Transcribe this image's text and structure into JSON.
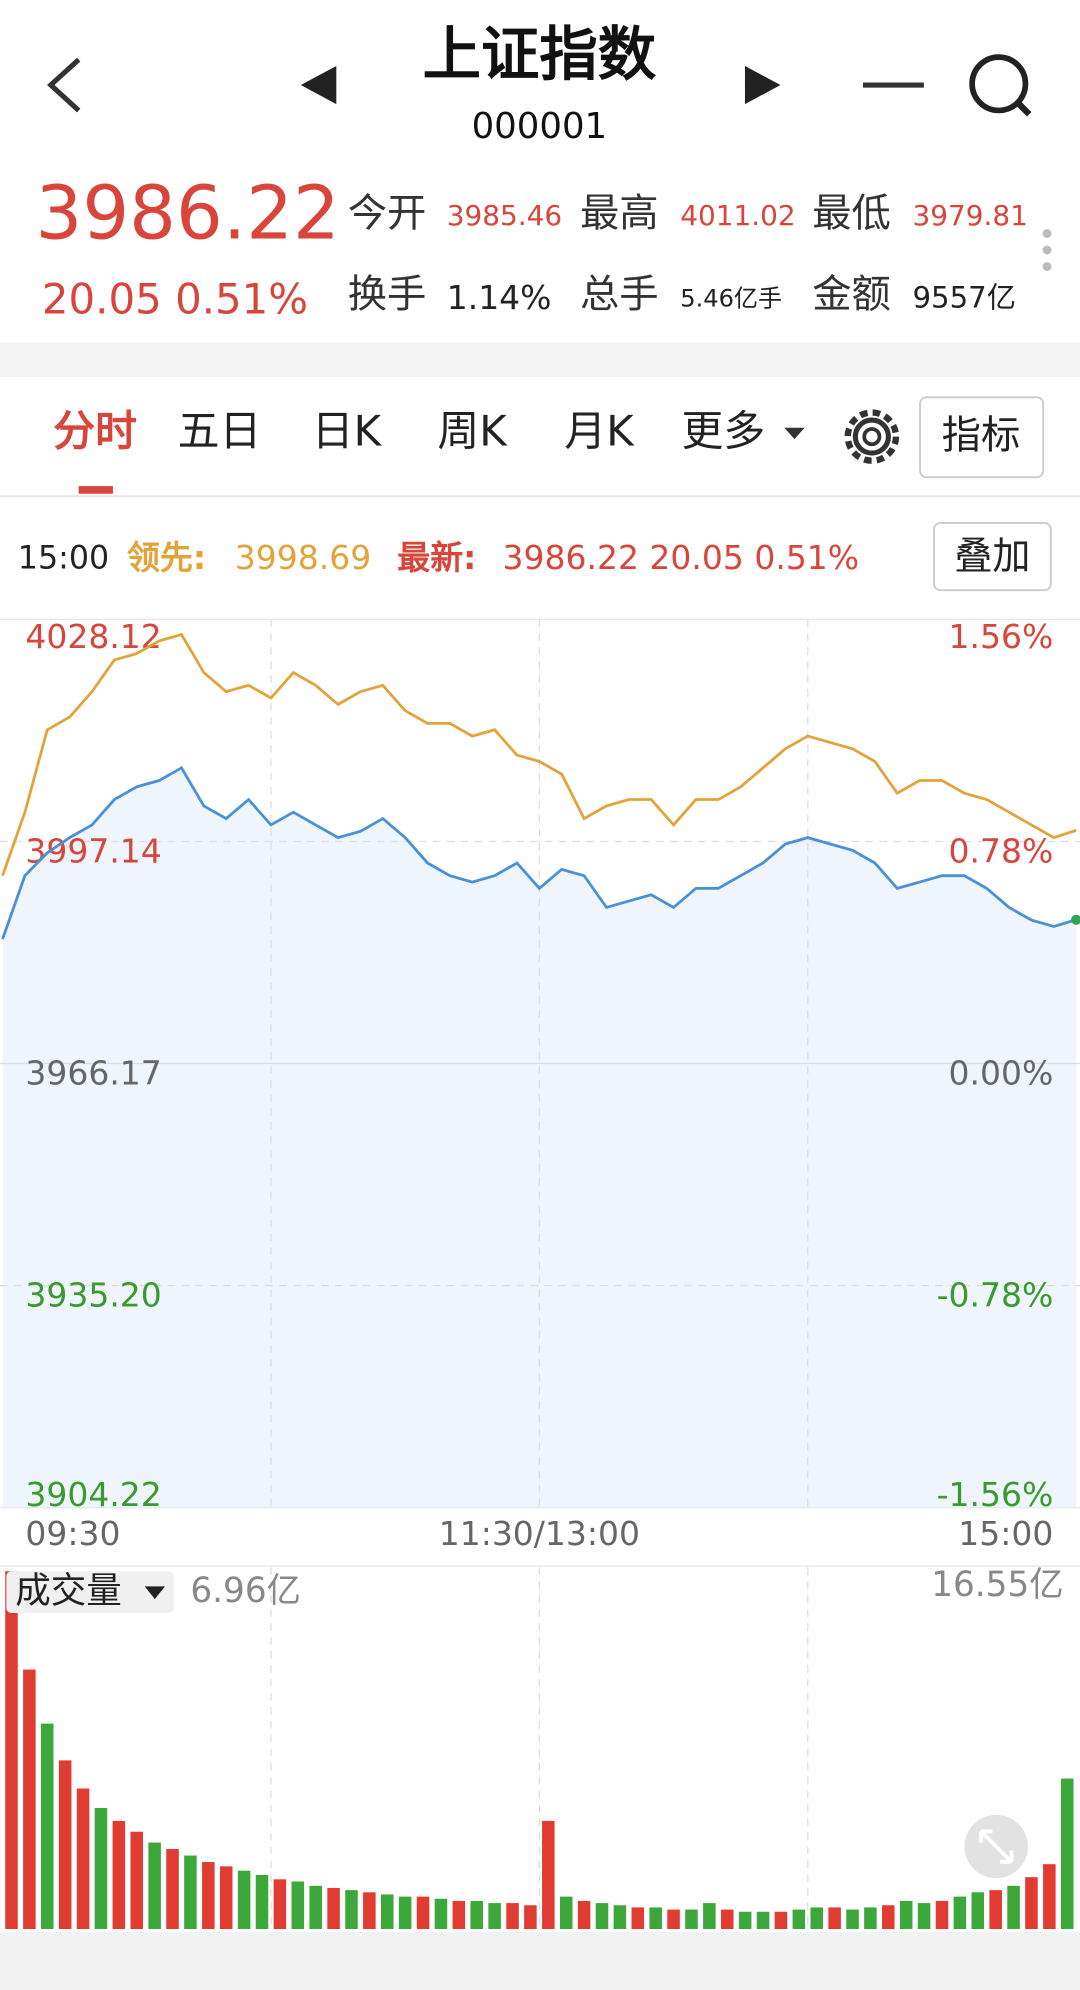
{
  "header": {
    "title": "上证指数",
    "code": "000001"
  },
  "quote": {
    "price": "3986.22",
    "change": "20.05 0.51%",
    "stats": [
      {
        "label": "今开",
        "value": "3985.46"
      },
      {
        "label": "最高",
        "value": "4011.02"
      },
      {
        "label": "最低",
        "value": "3979.81"
      },
      {
        "label": "换手",
        "value": "1.14%"
      },
      {
        "label": "总手",
        "value": "5.46亿手"
      },
      {
        "label": "金额",
        "value": "9557亿"
      }
    ]
  },
  "tabs": [
    "分时",
    "五日",
    "日K",
    "周K",
    "月K",
    "更多"
  ],
  "indicator_button": "指标",
  "info": {
    "time": "15:00",
    "lead_value": "3998.69",
    "latest": "3986.22 20.05 0.51%",
    "overlay_button": "叠加"
  },
  "chart_data": [
    {
      "type": "line",
      "x": [
        0,
        5,
        10,
        15,
        20,
        25,
        30,
        35,
        40,
        45,
        50,
        55,
        60,
        65,
        70,
        75,
        80,
        85,
        90,
        95,
        100,
        105,
        110,
        115,
        120,
        125,
        130,
        135,
        140,
        145,
        150,
        155,
        160,
        165,
        170,
        175,
        180,
        185,
        190,
        195,
        200,
        205,
        210,
        215,
        220,
        225,
        230,
        235,
        240
      ],
      "xlim": [
        0,
        240
      ],
      "xticks": [
        {
          "value": 0,
          "label": "09:30"
        },
        {
          "value": 120,
          "label": "11:30/13:00"
        },
        {
          "value": 240,
          "label": "15:00"
        }
      ],
      "ylim": [
        3904.22,
        4028.12
      ],
      "yticks": [
        4028.12,
        3997.14,
        3966.17,
        {
          "value": 3935.2,
          "label": "3935.20"
        },
        3904.22
      ],
      "y2lim": [
        -1.56,
        1.56
      ],
      "y2ticks": [
        {
          "value": 1.56,
          "label": "1.56%"
        },
        {
          "value": 0.78,
          "label": "0.78%"
        },
        {
          "value": 0,
          "label": "0.00%"
        },
        {
          "value": -0.78,
          "label": "-0.78%"
        },
        {
          "value": -1.56,
          "label": "-1.56%"
        }
      ],
      "up_color": "#d9453a",
      "flat_color": "#666666",
      "down_color": "#3a9a2e",
      "series": [
        {
          "name": "领先:",
          "color": "#e3a33a",
          "values": [
            3992.37,
            4001.22,
            4012.72,
            4014.49,
            4018.03,
            4022.46,
            4023.34,
            4025.11,
            4026.0,
            4020.69,
            4018.03,
            4018.92,
            4017.15,
            4020.69,
            4018.92,
            4016.26,
            4018.03,
            4018.92,
            4015.38,
            4013.61,
            4013.61,
            4011.84,
            4012.72,
            4009.18,
            4008.3,
            4006.53,
            4000.33,
            4002.1,
            4002.99,
            4002.99,
            3999.45,
            4002.99,
            4002.99,
            4004.76,
            4007.41,
            4010.07,
            4011.84,
            4010.95,
            4010.07,
            4008.3,
            4003.87,
            4005.64,
            4005.64,
            4003.87,
            4002.99,
            4001.22,
            3999.45,
            3997.68,
            3998.69
          ]
        },
        {
          "name": "最新:",
          "color": "#4a90d9",
          "area": "#eef5fc",
          "values": [
            3983.52,
            3992.37,
            3995.55,
            3997.68,
            3999.45,
            4002.99,
            4004.76,
            4005.64,
            4007.41,
            4002.1,
            4000.33,
            4002.99,
            3999.45,
            4001.22,
            3999.45,
            3997.68,
            3998.56,
            4000.33,
            3997.68,
            3994.14,
            3992.37,
            3991.48,
            3992.37,
            3994.14,
            3990.6,
            3993.25,
            3992.37,
            3987.94,
            3988.83,
            3989.71,
            3987.94,
            3990.6,
            3990.6,
            3992.37,
            3994.14,
            3996.79,
            3997.68,
            3996.79,
            3995.91,
            3994.14,
            3990.6,
            3991.48,
            3992.37,
            3992.37,
            3990.6,
            3987.94,
            3986.17,
            3985.29,
            3986.22
          ]
        }
      ]
    },
    {
      "type": "bar",
      "title": "成交量",
      "ylim": [
        0,
        16.55
      ],
      "yticks": [
        {
          "value": 16.55,
          "label": "16.55亿"
        }
      ],
      "values": [
        16.55,
        12.0,
        9.5,
        7.8,
        6.5,
        5.6,
        5.0,
        4.5,
        4.0,
        3.7,
        3.4,
        3.1,
        2.9,
        2.7,
        2.5,
        2.3,
        2.2,
        2.0,
        1.9,
        1.8,
        1.7,
        1.6,
        1.5,
        1.5,
        1.4,
        1.3,
        1.3,
        1.2,
        1.2,
        1.1,
        5.0,
        1.5,
        1.3,
        1.2,
        1.1,
        1.0,
        1.0,
        0.9,
        0.9,
        1.2,
        0.9,
        0.8,
        0.8,
        0.8,
        0.9,
        1.0,
        1.0,
        0.9,
        1.0,
        1.1,
        1.3,
        1.2,
        1.3,
        1.5,
        1.7,
        1.8,
        2.0,
        2.4,
        3.0,
        6.96
      ],
      "value_labels": [
        null,
        null,
        null,
        null,
        null,
        null,
        null,
        null,
        null,
        null,
        null,
        null,
        null,
        null,
        null,
        null,
        null,
        null,
        null,
        null,
        null,
        null,
        null,
        null,
        null,
        null,
        null,
        null,
        null,
        null,
        null,
        null,
        null,
        null,
        null,
        null,
        null,
        null,
        null,
        null,
        null,
        null,
        null,
        null,
        null,
        null,
        null,
        null,
        null,
        null,
        null,
        null,
        null,
        null,
        null,
        null,
        null,
        null,
        null,
        "6.96亿"
      ],
      "colors": [
        "#e03c31",
        "#e03c31",
        "#3ca73a",
        "#e03c31",
        "#e03c31",
        "#3ca73a",
        "#e03c31",
        "#e03c31",
        "#3ca73a",
        "#e03c31",
        "#3ca73a",
        "#e03c31",
        "#e03c31",
        "#3ca73a",
        "#3ca73a",
        "#e03c31",
        "#3ca73a",
        "#3ca73a",
        "#e03c31",
        "#3ca73a",
        "#e03c31",
        "#3ca73a",
        "#3ca73a",
        "#e03c31",
        "#3ca73a",
        "#e03c31",
        "#3ca73a",
        "#3ca73a",
        "#e03c31",
        "#e03c31",
        "#e03c31",
        "#3ca73a",
        "#e03c31",
        "#3ca73a",
        "#3ca73a",
        "#e03c31",
        "#3ca73a",
        "#e03c31",
        "#3ca73a",
        "#3ca73a",
        "#e03c31",
        "#3ca73a",
        "#3ca73a",
        "#e03c31",
        "#3ca73a",
        "#3ca73a",
        "#e03c31",
        "#3ca73a",
        "#3ca73a",
        "#e03c31",
        "#3ca73a",
        "#3ca73a",
        "#e03c31",
        "#3ca73a",
        "#3ca73a",
        "#e03c31",
        "#3ca73a",
        "#e03c31",
        "#e03c31",
        "#3ca73a"
      ]
    }
  ]
}
